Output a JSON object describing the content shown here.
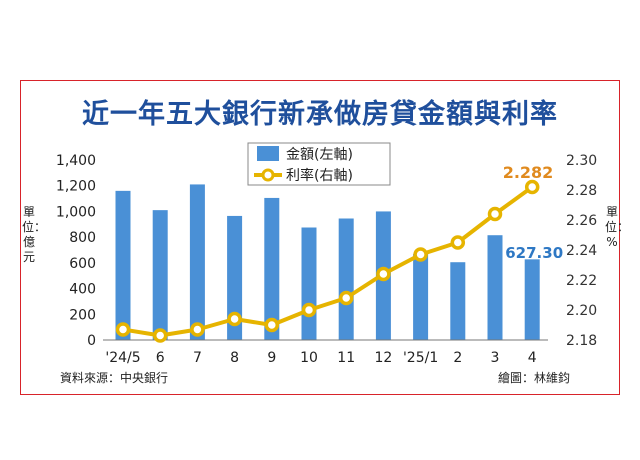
{
  "title": "近一年五大銀行新承做房貸金額與利率",
  "left_unit": "單位：億元",
  "right_unit": "單位：%",
  "source": "資料來源：中央銀行",
  "credit": "繪圖：林維鈞",
  "colors": {
    "bar": "#4a90d6",
    "line": "#e6b400",
    "last_value_right": "#e08a1e",
    "last_value_left": "#2e78c4",
    "title": "#1f4f9c",
    "frame": "#d8232a"
  },
  "chart_data": {
    "type": "bar+line",
    "categories": [
      "'24/5",
      "6",
      "7",
      "8",
      "9",
      "10",
      "11",
      "12",
      "'25/1",
      "2",
      "3",
      "4"
    ],
    "series": [
      {
        "name": "金額(左軸)",
        "axis": "left",
        "type": "bar",
        "values": [
          1160,
          1010,
          1210,
          965,
          1105,
          875,
          945,
          1000,
          670,
          605,
          815,
          627.3
        ]
      },
      {
        "name": "利率(右軸)",
        "axis": "right",
        "type": "line",
        "values": [
          2.187,
          2.183,
          2.187,
          2.194,
          2.19,
          2.2,
          2.208,
          2.224,
          2.237,
          2.245,
          2.264,
          2.282
        ]
      }
    ],
    "left_axis": {
      "ylim": [
        0,
        1400
      ],
      "ticks": [
        "0",
        "200",
        "400",
        "600",
        "800",
        "1,000",
        "1,200",
        "1,400"
      ]
    },
    "right_axis": {
      "ylim": [
        2.18,
        2.3
      ],
      "ticks": [
        "2.18",
        "2.20",
        "2.22",
        "2.24",
        "2.26",
        "2.28",
        "2.30"
      ]
    },
    "data_labels": {
      "bar_last": "627.30",
      "line_last": "2.282"
    },
    "legend": {
      "position": "top-center",
      "items": [
        "金額(左軸)",
        "利率(右軸)"
      ]
    }
  }
}
